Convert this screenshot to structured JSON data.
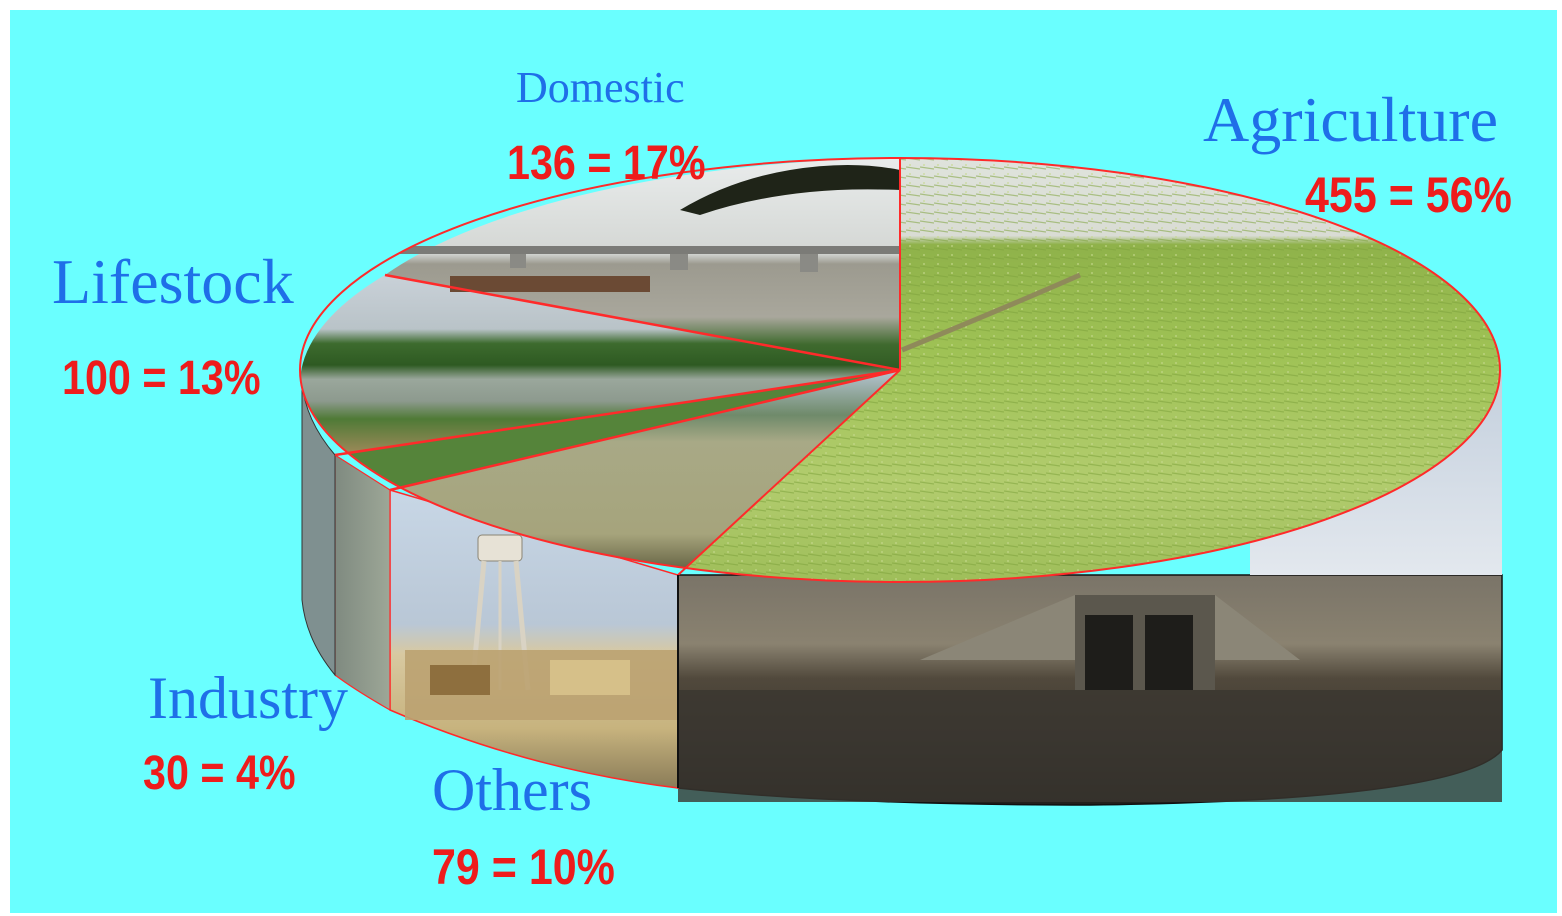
{
  "chart_data": {
    "type": "pie",
    "style": "3d-photo-textured",
    "slices": [
      {
        "category": "Agriculture",
        "value": 455,
        "percent": "56%",
        "value_text": "455 = 56%",
        "texture": "green rice paddy field"
      },
      {
        "category": "Others",
        "value": 79,
        "percent": "10%",
        "value_text": "79 = 10%",
        "texture": "river with sluice gate"
      },
      {
        "category": "Industry",
        "value": 30,
        "percent": "4%",
        "value_text": "30 = 4%",
        "texture": "water tower and buildings"
      },
      {
        "category": "Lifestock",
        "value": 100,
        "percent": "13%",
        "value_text": "100 = 13%",
        "texture": "pond and grassland"
      },
      {
        "category": "Domestic",
        "value": 136,
        "percent": "17%",
        "value_text": "136 = 17%",
        "texture": "river with bridge"
      }
    ],
    "slice_outline_color": "#ff2a2a",
    "background_color": "#6affff",
    "category_label_color": "#1f6fe8",
    "value_label_color": "#ee1c1c"
  }
}
